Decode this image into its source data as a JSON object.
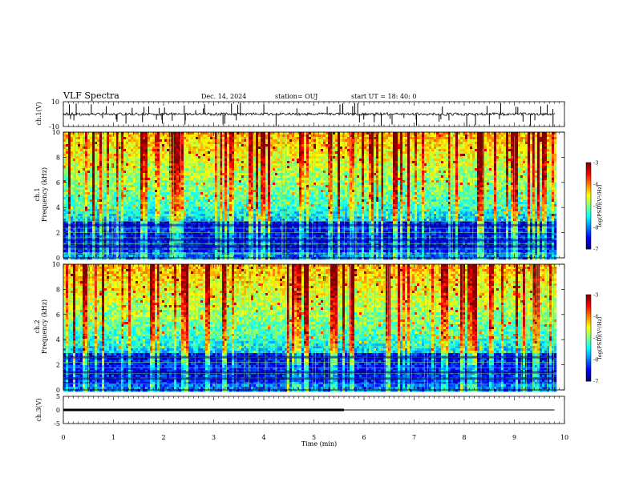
{
  "header": {
    "title": "VLF Spectra",
    "date": "Dec. 14, 2024",
    "station": "station= OUJ",
    "start": "start  UT  =   18: 40: 0"
  },
  "chart_data": [
    {
      "type": "line",
      "name": "ch1-waveform",
      "ylabel": "ch.1(V)",
      "ylim": [
        -10,
        10
      ],
      "yticks": [
        "10",
        "-10"
      ],
      "xlim": [
        0,
        10
      ]
    },
    {
      "type": "heatmap",
      "name": "ch1-spectrogram",
      "ylabel_top": "ch.1",
      "ylabel": "Frequency  (kHz)",
      "ylim": [
        0,
        10
      ],
      "yticks": [
        "0",
        "2",
        "4",
        "6",
        "8",
        "10"
      ],
      "xlim": [
        0,
        9.8
      ],
      "colorbar": {
        "label": "log(PSD)(V²/Hz)",
        "range": [
          -7,
          -3
        ],
        "ticks": [
          "-3",
          "-4",
          "-5",
          "-6",
          "-7"
        ]
      }
    },
    {
      "type": "heatmap",
      "name": "ch2-spectrogram",
      "ylabel_top": "ch.2",
      "ylabel": "Frequency  (kHz)",
      "ylim": [
        0,
        10
      ],
      "yticks": [
        "0",
        "2",
        "4",
        "6",
        "8",
        "10"
      ],
      "xlim": [
        0,
        9.8
      ],
      "colorbar": {
        "label": "log(PSD)(V²/Hz)",
        "range": [
          -7,
          -3
        ],
        "ticks": [
          "-3",
          "-4",
          "-5",
          "-6",
          "-7"
        ]
      }
    },
    {
      "type": "line",
      "name": "ch3-signal",
      "ylabel": "ch.3(V)",
      "ylim": [
        -5,
        5
      ],
      "yticks": [
        "5",
        "0",
        "-5"
      ],
      "xlim": [
        0,
        10
      ],
      "x": [
        0,
        5.6,
        9.8
      ],
      "y": [
        0,
        0,
        0
      ]
    }
  ],
  "xaxis": {
    "label": "Time  (min)",
    "ticks": [
      "0",
      "1",
      "2",
      "3",
      "4",
      "5",
      "6",
      "7",
      "8",
      "9",
      "10"
    ]
  }
}
